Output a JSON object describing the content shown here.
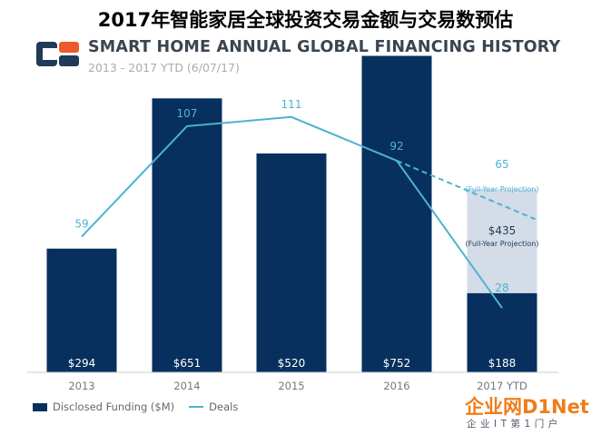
{
  "page_title": "2017年智能家居全球投资交易金额与交易数预估",
  "brand": {
    "dark": "#1f3b57",
    "accent": "#ea5a2b"
  },
  "watermark": {
    "text": "企业网D1Net",
    "sub": "企业IT第1门户"
  },
  "chart_data": {
    "type": "bar",
    "title": "SMART HOME ANNUAL GLOBAL FINANCING HISTORY",
    "subtitle": "2013 - 2017 YTD (6/07/17)",
    "categories": [
      "2013",
      "2014",
      "2015",
      "2016",
      "2017 YTD"
    ],
    "series": [
      {
        "name": "Disclosed Funding ($M)",
        "type": "bar",
        "color": "#07305e",
        "values": [
          294,
          651,
          520,
          752,
          188
        ],
        "labels": [
          "$294",
          "$651",
          "$520",
          "$752",
          "$188"
        ]
      },
      {
        "name": "Deals",
        "type": "line",
        "color": "#4bb3d3",
        "values": [
          59,
          107,
          111,
          92,
          28
        ],
        "labels": [
          "59",
          "107",
          "111",
          "92",
          "28"
        ]
      }
    ],
    "projection": {
      "funding_value": 435,
      "funding_label": "$435",
      "funding_note": "(Full-Year Projection)",
      "deals_value": 65,
      "deals_label": "65",
      "deals_note": "(Full-Year Projection)",
      "funding_color": "#d3dce7"
    },
    "funding_axis": [
      0,
      820
    ],
    "deals_axis": [
      0,
      150
    ],
    "grid": false,
    "legend_position": "bottom-left"
  }
}
